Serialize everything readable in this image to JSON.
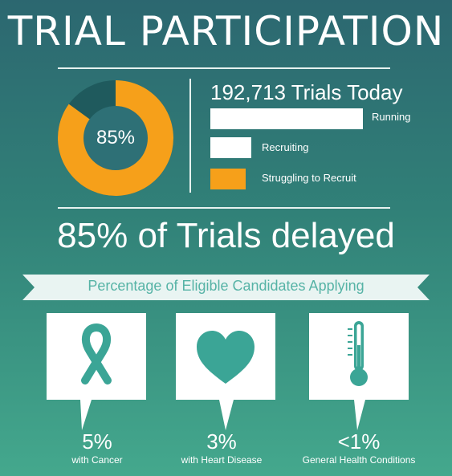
{
  "title": "TRIAL PARTICIPATION",
  "donut": {
    "percent_label": "85%",
    "delayed_fraction": 0.85,
    "colors": {
      "delayed": "#f6a01a",
      "other": "#1f5a5d",
      "hole": "#2e7076"
    }
  },
  "trials": {
    "count_label": "192,713 Trials Today",
    "legend": [
      {
        "label": "Running",
        "fraction": 1.0,
        "color": "#ffffff"
      },
      {
        "label": "Recruiting",
        "fraction": 0.27,
        "color": "#ffffff"
      },
      {
        "label": "Struggling to Recruit",
        "fraction": 0.23,
        "color": "#f6a01a"
      }
    ]
  },
  "headline": "85% of Trials delayed",
  "ribbon": {
    "text": "Percentage of Eligible Candidates Applying"
  },
  "stats": [
    {
      "icon": "ribbon-icon",
      "value": "5%",
      "label": "with Cancer"
    },
    {
      "icon": "heart-icon",
      "value": "3%",
      "label": "with Heart Disease"
    },
    {
      "icon": "thermometer-icon",
      "value": "<1%",
      "label": "General Health Conditions"
    }
  ],
  "colors": {
    "accent": "#3ba596",
    "orange": "#f6a01a",
    "white": "#ffffff"
  }
}
